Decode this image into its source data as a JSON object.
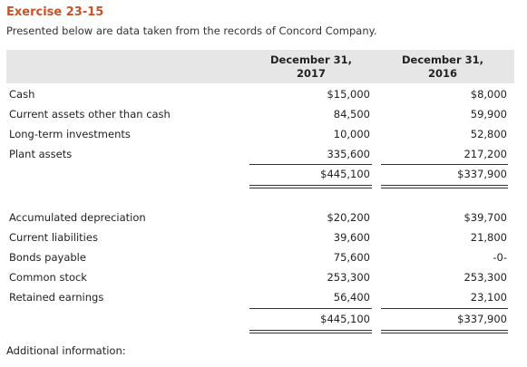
{
  "exercise_title": "Exercise 23-15",
  "intro_text": "Presented below are data taken from the records of Concord Company.",
  "columns": [
    {
      "line1": "December 31,",
      "line2": "2017"
    },
    {
      "line1": "December 31,",
      "line2": "2016"
    }
  ],
  "assets": [
    {
      "label": "Cash",
      "y2017": "$15,000",
      "y2016": "$8,000"
    },
    {
      "label": "Current assets other than cash",
      "y2017": "84,500",
      "y2016": "59,900"
    },
    {
      "label": "Long-term investments",
      "y2017": "10,000",
      "y2016": "52,800"
    },
    {
      "label": "Plant assets",
      "y2017": "335,600",
      "y2016": "217,200"
    }
  ],
  "assets_total": {
    "y2017": "$445,100",
    "y2016": "$337,900"
  },
  "liabilities_equity": [
    {
      "label": "Accumulated depreciation",
      "y2017": "$20,200",
      "y2016": "$39,700"
    },
    {
      "label": "Current liabilities",
      "y2017": "39,600",
      "y2016": "21,800"
    },
    {
      "label": "Bonds payable",
      "y2017": "75,600",
      "y2016": "-0-"
    },
    {
      "label": "Common stock",
      "y2017": "253,300",
      "y2016": "253,300"
    },
    {
      "label": "Retained earnings",
      "y2017": "56,400",
      "y2016": "23,100"
    }
  ],
  "liabilities_equity_total": {
    "y2017": "$445,100",
    "y2016": "$337,900"
  },
  "footer_text": "Additional information:"
}
